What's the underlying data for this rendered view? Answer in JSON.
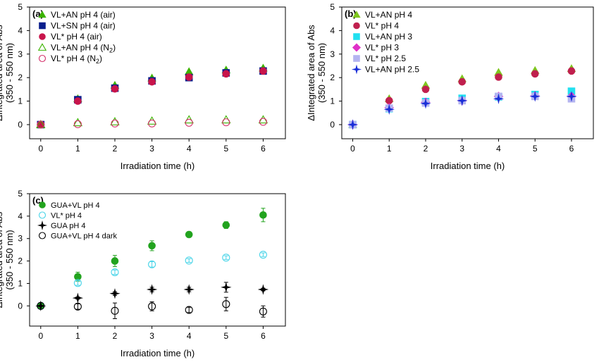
{
  "chart_data": [
    {
      "type": "scatter",
      "panel": "(a)",
      "xlabel": "Irradiation time (h)",
      "ylabel_line1": "ΔIntegrated area of Abs",
      "ylabel_line2": "(350 - 550 nm)",
      "xlim": [
        -0.3,
        6.6
      ],
      "ylim": [
        -0.6,
        5
      ],
      "xticks": [
        "0",
        "1",
        "2",
        "3",
        "4",
        "5",
        "6"
      ],
      "yticks": [
        "0",
        "1",
        "2",
        "3",
        "4",
        "5"
      ],
      "x": [
        0,
        1,
        2,
        3,
        4,
        5,
        6
      ],
      "series": [
        {
          "name": "VL+AN pH 4 (air)",
          "marker": "triangle",
          "fill": true,
          "color": "#3cb300",
          "values": [
            0,
            1.1,
            1.67,
            1.98,
            2.25,
            2.32,
            2.4
          ],
          "err": [
            0,
            0,
            0,
            0,
            0,
            0,
            0
          ]
        },
        {
          "name": "VL+SN pH 4 (air)",
          "marker": "square",
          "fill": true,
          "color": "#0a1e8c",
          "values": [
            0,
            1.06,
            1.55,
            1.86,
            2.0,
            2.2,
            2.28
          ],
          "err": [
            0,
            0,
            0,
            0,
            0,
            0,
            0
          ]
        },
        {
          "name": "VL* pH 4 (air)",
          "marker": "circle",
          "fill": true,
          "color": "#c8144b",
          "values": [
            0,
            1.0,
            1.52,
            1.82,
            2.02,
            2.16,
            2.28
          ],
          "err": [
            0,
            0,
            0,
            0,
            0,
            0,
            0
          ]
        },
        {
          "name": "VL+AN pH 4 (N",
          "name_sub": "2",
          "name_post": ")",
          "marker": "triangle",
          "fill": false,
          "color": "#3cb300",
          "values": [
            0,
            0.08,
            0.12,
            0.15,
            0.2,
            0.2,
            0.2
          ],
          "err": [
            0,
            0,
            0,
            0,
            0,
            0,
            0
          ]
        },
        {
          "name": "VL* pH 4 (N",
          "name_sub": "2",
          "name_post": ")",
          "marker": "circle",
          "fill": false,
          "color": "#d4306a",
          "values": [
            0,
            0.02,
            0.05,
            0.05,
            0.08,
            0.1,
            0.12
          ],
          "err": [
            0,
            0,
            0,
            0,
            0,
            0,
            0
          ]
        }
      ]
    },
    {
      "type": "scatter",
      "panel": "(b)",
      "xlabel": "Irradiation time (h)",
      "ylabel_line1": "ΔIntegrated area of Abs",
      "ylabel_line2": "(350 - 550 nm)",
      "xlim": [
        -0.3,
        6.6
      ],
      "ylim": [
        -0.6,
        5
      ],
      "xticks": [
        "0",
        "1",
        "2",
        "3",
        "4",
        "5",
        "6"
      ],
      "yticks": [
        "0",
        "1",
        "2",
        "3",
        "4",
        "5"
      ],
      "x": [
        0,
        1,
        2,
        3,
        4,
        5,
        6
      ],
      "series": [
        {
          "name": "VL+AN pH 4",
          "marker": "triangle",
          "fill": true,
          "color": "#7ec61e",
          "values": [
            0,
            1.1,
            1.67,
            1.95,
            2.22,
            2.3,
            2.38
          ],
          "err": [
            0,
            0,
            0,
            0,
            0,
            0,
            0
          ]
        },
        {
          "name": "VL* pH 4",
          "marker": "circle",
          "fill": true,
          "color": "#c0204e",
          "values": [
            0,
            1.02,
            1.5,
            1.82,
            2.02,
            2.16,
            2.28
          ],
          "err": [
            0,
            0,
            0,
            0,
            0,
            0,
            0
          ]
        },
        {
          "name": "VL+AN pH 3",
          "marker": "square",
          "fill": true,
          "color": "#22e0f0",
          "values": [
            0,
            0.68,
            0.98,
            1.12,
            1.18,
            1.28,
            1.42
          ],
          "err": [
            0,
            0,
            0,
            0,
            0,
            0,
            0
          ]
        },
        {
          "name": "VL* pH 3",
          "marker": "diamond",
          "fill": true,
          "color": "#e030c8",
          "values": [
            0,
            0.72,
            0.95,
            1.02,
            1.2,
            1.22,
            1.2
          ],
          "err": [
            0,
            0,
            0,
            0,
            0,
            0,
            0
          ]
        },
        {
          "name": "VL* pH 2.5",
          "marker": "square",
          "fill": true,
          "color": "#b4b4f0",
          "values": [
            0,
            0.7,
            0.92,
            1.02,
            1.2,
            1.2,
            1.1
          ],
          "err": [
            0,
            0,
            0,
            0,
            0,
            0,
            0
          ]
        },
        {
          "name": "VL+AN pH 2.5",
          "marker": "star",
          "fill": true,
          "color": "#1a2ed8",
          "values": [
            0,
            0.65,
            0.9,
            1.02,
            1.1,
            1.2,
            1.2
          ],
          "err": [
            0,
            0,
            0,
            0,
            0,
            0,
            0
          ]
        }
      ]
    },
    {
      "type": "scatter",
      "panel": "(c)",
      "xlabel": "Irradiation time (h)",
      "ylabel_line1": "ΔIntegrated area of Abs",
      "ylabel_line2": "(350 - 550 nm)",
      "xlim": [
        -0.3,
        6.6
      ],
      "ylim": [
        -0.9,
        5
      ],
      "xticks": [
        "0",
        "1",
        "2",
        "3",
        "4",
        "5",
        "6"
      ],
      "yticks": [
        "0",
        "1",
        "2",
        "3",
        "4",
        "5"
      ],
      "x": [
        0,
        1,
        2,
        3,
        4,
        5,
        6
      ],
      "series": [
        {
          "name": "GUA+VL pH 4",
          "marker": "circle",
          "fill": true,
          "color": "#22a31e",
          "values": [
            0,
            1.3,
            2.0,
            2.68,
            3.18,
            3.6,
            4.05
          ],
          "err": [
            0,
            0.2,
            0.25,
            0.22,
            0.12,
            0.15,
            0.3
          ]
        },
        {
          "name": "VL* pH 4",
          "marker": "circle",
          "fill": false,
          "color": "#48d4e8",
          "values": [
            0,
            1.02,
            1.5,
            1.85,
            2.02,
            2.15,
            2.28
          ],
          "err": [
            0,
            0.1,
            0.1,
            0.12,
            0.08,
            0.08,
            0.08
          ]
        },
        {
          "name": "GUA pH 4",
          "marker": "star",
          "fill": true,
          "color": "#000000",
          "values": [
            0,
            0.35,
            0.55,
            0.73,
            0.73,
            0.83,
            0.73
          ],
          "err": [
            0,
            0.05,
            0.08,
            0.1,
            0.1,
            0.22,
            0.06
          ]
        },
        {
          "name": "GUA+VL pH 4 dark",
          "marker": "circle",
          "fill": false,
          "color": "#000000",
          "values": [
            0,
            -0.03,
            -0.22,
            -0.02,
            -0.18,
            0.08,
            -0.25
          ],
          "err": [
            0,
            0.12,
            0.35,
            0.2,
            0.12,
            0.3,
            0.25
          ]
        }
      ]
    }
  ]
}
